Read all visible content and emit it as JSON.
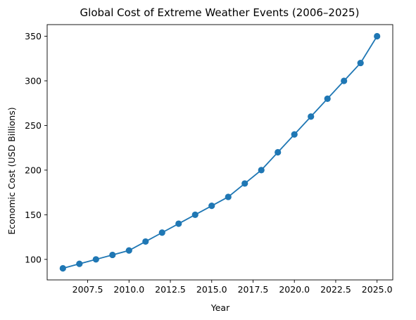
{
  "chart_data": {
    "type": "line",
    "title": "Global Cost of Extreme Weather Events (2006–2025)",
    "xlabel": "Year",
    "ylabel": "Economic Cost (USD Billions)",
    "x": [
      2006,
      2007,
      2008,
      2009,
      2010,
      2011,
      2012,
      2013,
      2014,
      2015,
      2016,
      2017,
      2018,
      2019,
      2020,
      2021,
      2022,
      2023,
      2024,
      2025
    ],
    "series": [
      {
        "name": "",
        "values": [
          90,
          95,
          100,
          105,
          110,
          120,
          130,
          140,
          150,
          160,
          170,
          185,
          200,
          220,
          240,
          260,
          280,
          300,
          320,
          350
        ],
        "color": "#1f77b4",
        "marker": "circle"
      }
    ],
    "xlim": [
      2005.05,
      2025.95
    ],
    "ylim": [
      77,
      363
    ],
    "xticks": [
      2007.5,
      2010.0,
      2012.5,
      2015.0,
      2017.5,
      2020.0,
      2022.5,
      2025.0
    ],
    "xtick_labels": [
      "2007.5",
      "2010.0",
      "2012.5",
      "2015.0",
      "2017.5",
      "2020.0",
      "2022.5",
      "2025.0"
    ],
    "yticks": [
      100,
      150,
      200,
      250,
      300,
      350
    ],
    "ytick_labels": [
      "100",
      "150",
      "200",
      "250",
      "300",
      "350"
    ],
    "grid": false,
    "legend": "none"
  }
}
